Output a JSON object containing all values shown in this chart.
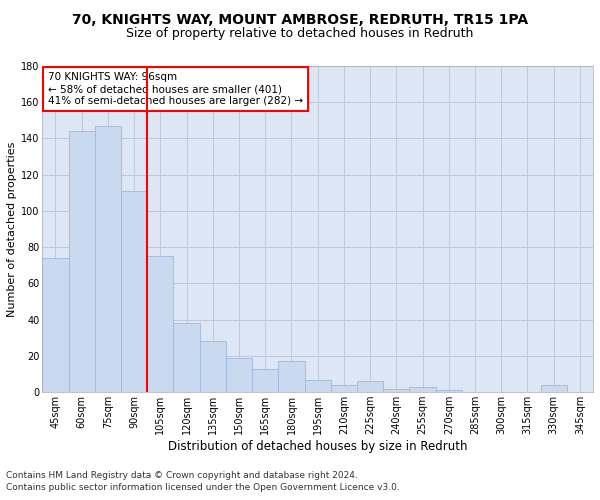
{
  "title1": "70, KNIGHTS WAY, MOUNT AMBROSE, REDRUTH, TR15 1PA",
  "title2": "Size of property relative to detached houses in Redruth",
  "xlabel": "Distribution of detached houses by size in Redruth",
  "ylabel": "Number of detached properties",
  "categories": [
    "45sqm",
    "60sqm",
    "75sqm",
    "90sqm",
    "105sqm",
    "120sqm",
    "135sqm",
    "150sqm",
    "165sqm",
    "180sqm",
    "195sqm",
    "210sqm",
    "225sqm",
    "240sqm",
    "255sqm",
    "270sqm",
    "285sqm",
    "300sqm",
    "315sqm",
    "330sqm",
    "345sqm"
  ],
  "values": [
    74,
    144,
    147,
    111,
    75,
    38,
    28,
    19,
    13,
    17,
    7,
    4,
    6,
    2,
    3,
    1,
    0,
    0,
    0,
    4,
    0
  ],
  "bar_color": "#c9d9f0",
  "bar_edgecolor": "#a0b8dc",
  "vline_x": 3.5,
  "vline_color": "red",
  "annotation_text": "70 KNIGHTS WAY: 96sqm\n← 58% of detached houses are smaller (401)\n41% of semi-detached houses are larger (282) →",
  "annotation_box_color": "white",
  "annotation_box_edgecolor": "red",
  "ylim": [
    0,
    180
  ],
  "yticks": [
    0,
    20,
    40,
    60,
    80,
    100,
    120,
    140,
    160,
    180
  ],
  "grid_color": "#c0c8d8",
  "background_color": "#dce6f5",
  "footer1": "Contains HM Land Registry data © Crown copyright and database right 2024.",
  "footer2": "Contains public sector information licensed under the Open Government Licence v3.0.",
  "title1_fontsize": 10,
  "title2_fontsize": 9,
  "xlabel_fontsize": 8.5,
  "ylabel_fontsize": 8,
  "tick_fontsize": 7,
  "annotation_fontsize": 7.5,
  "footer_fontsize": 6.5
}
